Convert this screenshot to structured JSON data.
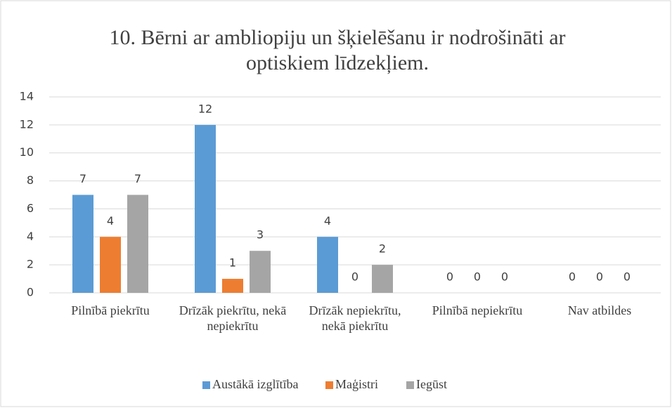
{
  "chart_data": {
    "type": "bar",
    "title": "10. Bērni ar ambliopiju un šķielēšanu ir nodrošināti ar optiskiem līdzekļiem.",
    "categories": [
      "Pilnībā piekrītu",
      "Drīzāk piekrītu, nekā nepiekrītu",
      "Drīzāk nepiekrītu, nekā piekrītu",
      "Pilnībā nepiekrītu",
      "Nav atbildes"
    ],
    "series": [
      {
        "name": "Austākā izglītība",
        "color": "#5b9bd5",
        "values": [
          7,
          12,
          4,
          0,
          0
        ]
      },
      {
        "name": "Maģistri",
        "color": "#ed7d31",
        "values": [
          4,
          1,
          0,
          0,
          0
        ]
      },
      {
        "name": "Iegūst",
        "color": "#a5a5a5",
        "values": [
          7,
          3,
          2,
          0,
          0
        ]
      }
    ],
    "ylim": [
      0,
      14
    ],
    "yticks": [
      0,
      2,
      4,
      6,
      8,
      10,
      12,
      14
    ],
    "grid": true,
    "legend": "bottom"
  }
}
